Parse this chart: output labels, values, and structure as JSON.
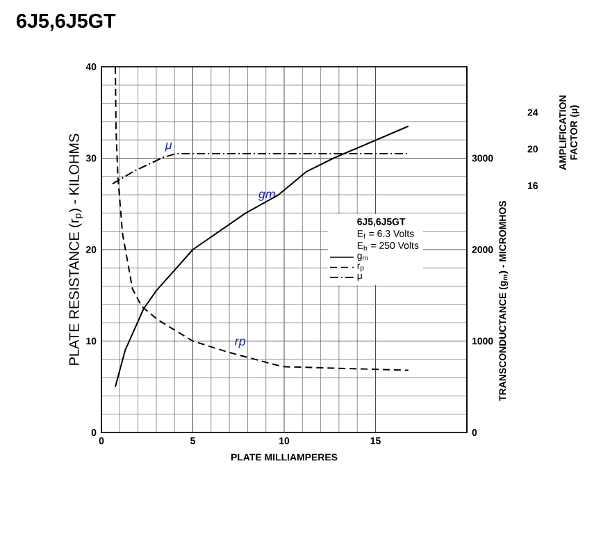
{
  "chart_data": {
    "type": "line",
    "title": "6J5,6J5GT",
    "legend_title": "6J5,6J5GT",
    "xlabel": "PLATE MILLIAMPERES",
    "ylabel": "PLATE RESISTANCE (r$_{p}$) - KILOHMS",
    "y2label": "TRANSCONDUCTANCE (g$_{m}$) - MICROMHOS",
    "y3label": "AMPLIFICATION FACTOR (μ)",
    "xlim": [
      0,
      20
    ],
    "xticks": [
      0,
      5,
      10,
      15
    ],
    "ylim": [
      0,
      40
    ],
    "yticks": [
      0,
      10,
      20,
      30,
      40
    ],
    "y2lim": [
      0,
      4000
    ],
    "y2ticks": [
      0,
      1000,
      2000,
      3000
    ],
    "y3lim": [
      -11,
      29
    ],
    "y3ticks": [
      16,
      20,
      24
    ],
    "grid": true,
    "legend": "right",
    "series": [
      {
        "name": "g$_{m}$",
        "color": "#000000",
        "line_style": "solid",
        "axis": "y2",
        "x": [
          0.76,
          1.3,
          2.3,
          3.0,
          5.0,
          7.9,
          9.7,
          11.2,
          12.7,
          16.8
        ],
        "values": [
          500,
          900,
          1350,
          1550,
          2000,
          2400,
          2600,
          2850,
          3000,
          3350
        ]
      },
      {
        "name": "r$_{p}$",
        "color": "#000000",
        "line_style": "dashed",
        "axis": "y",
        "x": [
          0.76,
          0.8,
          0.9,
          1.15,
          1.7,
          2.2,
          3.1,
          5.0,
          6.9,
          9.9,
          16.8
        ],
        "values": [
          40,
          33,
          28,
          21.8,
          15.7,
          13.8,
          12.3,
          10,
          8.8,
          7.2,
          6.8
        ]
      },
      {
        "name": "μ",
        "color": "#000000",
        "line_style": "dashdot",
        "axis": "y3",
        "x": [
          0.6,
          1.8,
          3.4,
          4.1,
          16.8
        ],
        "values": [
          16.2,
          17.6,
          19.1,
          19.5,
          19.5
        ]
      }
    ],
    "annotations": [
      "E$_{f}$ = 6.3 Volts",
      "E$_{b}$ = 250 Volts",
      {
        "text": "μ",
        "x": 3.4,
        "y": 30.1
      },
      {
        "text": "gm",
        "x": 8.5,
        "y": 24.7
      },
      {
        "text": "rp",
        "x": 7.2,
        "y": 8.6
      }
    ]
  }
}
